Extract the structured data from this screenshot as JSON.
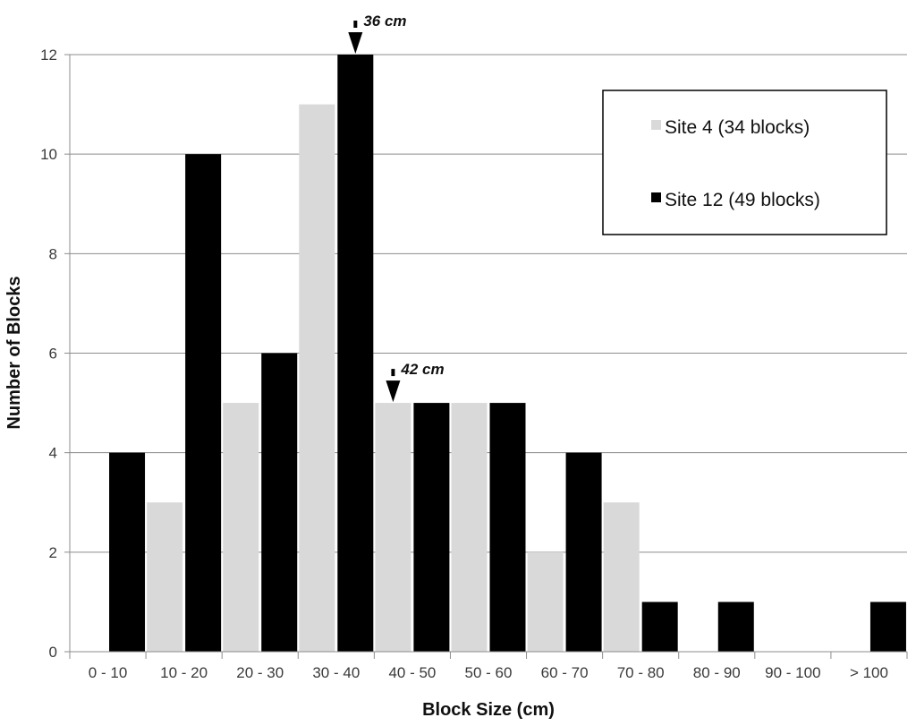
{
  "chart_data": {
    "type": "bar",
    "title": "",
    "xlabel": "Block Size (cm)",
    "ylabel": "Number of Blocks",
    "categories": [
      "0 - 10",
      "10 - 20",
      "20 - 30",
      "30 - 40",
      "40 - 50",
      "50 - 60",
      "60 - 70",
      "70 - 80",
      "80 - 90",
      "90 - 100",
      "> 100"
    ],
    "series": [
      {
        "name": "Site 4 (34 blocks)",
        "color": "#d9d9d9",
        "values": [
          0,
          3,
          5,
          11,
          5,
          5,
          2,
          3,
          0,
          0,
          0
        ]
      },
      {
        "name": "Site 12 (49 blocks)",
        "color": "#000000",
        "values": [
          4,
          10,
          6,
          12,
          5,
          5,
          4,
          1,
          1,
          0,
          1
        ]
      }
    ],
    "ylim": [
      0,
      12
    ],
    "yticks": [
      0,
      2,
      4,
      6,
      8,
      10,
      12
    ],
    "grid": true,
    "legend_position": "top-right",
    "annotations": [
      {
        "text": "36 cm",
        "category": "30 - 40",
        "series": "Site 12 (49 blocks)"
      },
      {
        "text": "42 cm",
        "category": "40 - 50",
        "series": "Site 4 (34 blocks)"
      }
    ]
  }
}
